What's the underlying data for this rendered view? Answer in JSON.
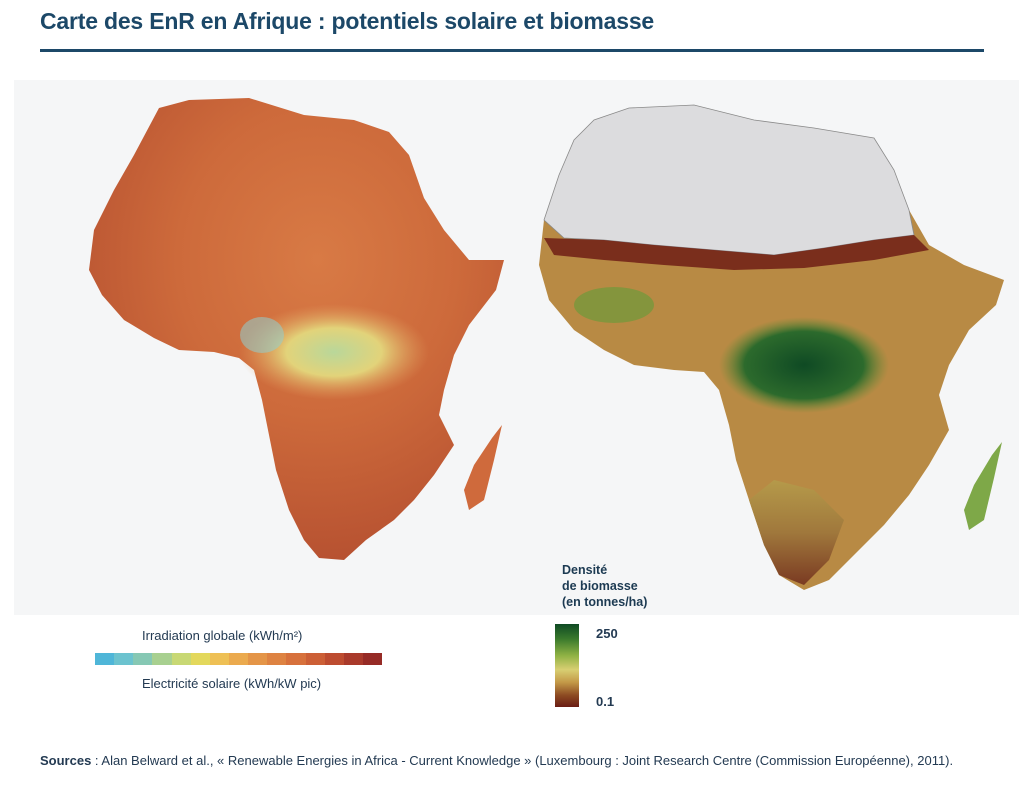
{
  "title": "Carte des EnR en Afrique : potentiels solaire et biomasse",
  "maps": {
    "solar": {
      "icon": "africa-solar-irradiation-map"
    },
    "biomass": {
      "icon": "africa-biomass-density-map"
    }
  },
  "solar_legend": {
    "label_top": "Irradiation globale (kWh/m²)",
    "label_bottom": "Electricité solaire (kWh/kW pic)",
    "scale_colors": [
      "#4fb6d8",
      "#6cc3cf",
      "#86c8b4",
      "#a8d090",
      "#c8d874",
      "#e3d85c",
      "#eec055",
      "#ebaa4e",
      "#e49548",
      "#de8342",
      "#d7713c",
      "#cc5f36",
      "#bd4c30",
      "#a93a2b",
      "#962b26"
    ]
  },
  "biomass_legend": {
    "title_line1": "Densité",
    "title_line2": "de biomasse",
    "title_line3": "(en tonnes/ha)",
    "max": "250",
    "min": "0.1"
  },
  "sources": {
    "label": "Sources",
    "text": " : Alan Belward et al., « Renewable Energies in Africa - Current Knowledge » (Luxembourg : Joint Research Centre (Commission Européenne), 2011)."
  }
}
